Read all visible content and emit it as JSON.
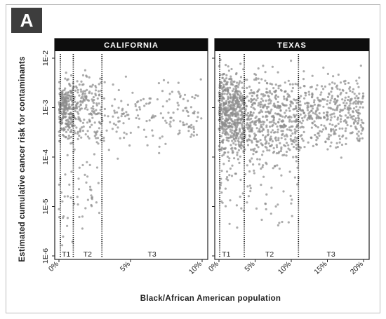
{
  "panel_label": "A",
  "chart_data": [
    {
      "type": "scatter",
      "title": "CALIFORNIA",
      "xlabel": "Black/African American population",
      "ylabel": "Estimated cumulative cancer risk for contaminants",
      "x_unit": "%",
      "xlim": [
        0,
        10
      ],
      "x_ticks": [
        0,
        5,
        10
      ],
      "x_tick_labels": [
        "0%",
        "5%",
        "10%"
      ],
      "y_scale": "log",
      "ylim": [
        1e-06,
        0.01
      ],
      "y_ticks": [
        0.01,
        0.001,
        0.0001,
        1e-05,
        1e-06
      ],
      "y_tick_labels": [
        "1E-2",
        "1E-3",
        "1E-4",
        "1E-5",
        "1E-6"
      ],
      "tier_boundaries": [
        0.1,
        1.0,
        3.0
      ],
      "tiers": [
        {
          "label": "T1",
          "x": 0.5
        },
        {
          "label": "T2",
          "x": 2.0
        },
        {
          "label": "T3",
          "x": 6.5
        }
      ],
      "point_color": "#8c8c8c",
      "grid": false,
      "clusters": [
        {
          "x_min": 0.0,
          "x_max": 1.0,
          "log_center": -3.05,
          "log_sd": 0.28,
          "n": 240
        },
        {
          "x_min": 1.0,
          "x_max": 3.0,
          "log_center": -3.0,
          "log_sd": 0.35,
          "n": 170
        },
        {
          "x_min": 3.0,
          "x_max": 10.0,
          "log_center": -3.15,
          "log_sd": 0.32,
          "n": 160
        },
        {
          "x_min": 0.0,
          "x_max": 3.0,
          "log_center": -4.5,
          "log_sd": 0.55,
          "n": 60
        }
      ]
    },
    {
      "type": "scatter",
      "title": "TEXAS",
      "xlabel": "Black/African American population",
      "ylabel": "Estimated cumulative cancer risk for contaminants",
      "x_unit": "%",
      "xlim": [
        0,
        20
      ],
      "x_ticks": [
        0,
        5,
        10,
        15,
        20
      ],
      "x_tick_labels": [
        "0%",
        "5%",
        "10%",
        "15%",
        "20%"
      ],
      "y_scale": "log",
      "ylim": [
        1e-06,
        0.01
      ],
      "y_ticks": [
        0.01,
        0.001,
        0.0001,
        1e-05,
        1e-06
      ],
      "y_tick_labels": [
        "1E-2",
        "1E-3",
        "1E-4",
        "1E-5",
        "1E-6"
      ],
      "tier_boundaries": [
        0.1,
        3.5,
        11.0
      ],
      "tiers": [
        {
          "label": "T1",
          "x": 1.0
        },
        {
          "label": "T2",
          "x": 7.0
        },
        {
          "label": "T3",
          "x": 15.5
        }
      ],
      "point_color": "#8c8c8c",
      "grid": false,
      "clusters": [
        {
          "x_min": 0.0,
          "x_max": 3.5,
          "log_center": -3.1,
          "log_sd": 0.4,
          "n": 520
        },
        {
          "x_min": 3.5,
          "x_max": 11.0,
          "log_center": -3.2,
          "log_sd": 0.42,
          "n": 450
        },
        {
          "x_min": 11.0,
          "x_max": 20.0,
          "log_center": -3.1,
          "log_sd": 0.33,
          "n": 380
        },
        {
          "x_min": 0.0,
          "x_max": 11.0,
          "log_center": -4.4,
          "log_sd": 0.5,
          "n": 110
        }
      ]
    }
  ]
}
